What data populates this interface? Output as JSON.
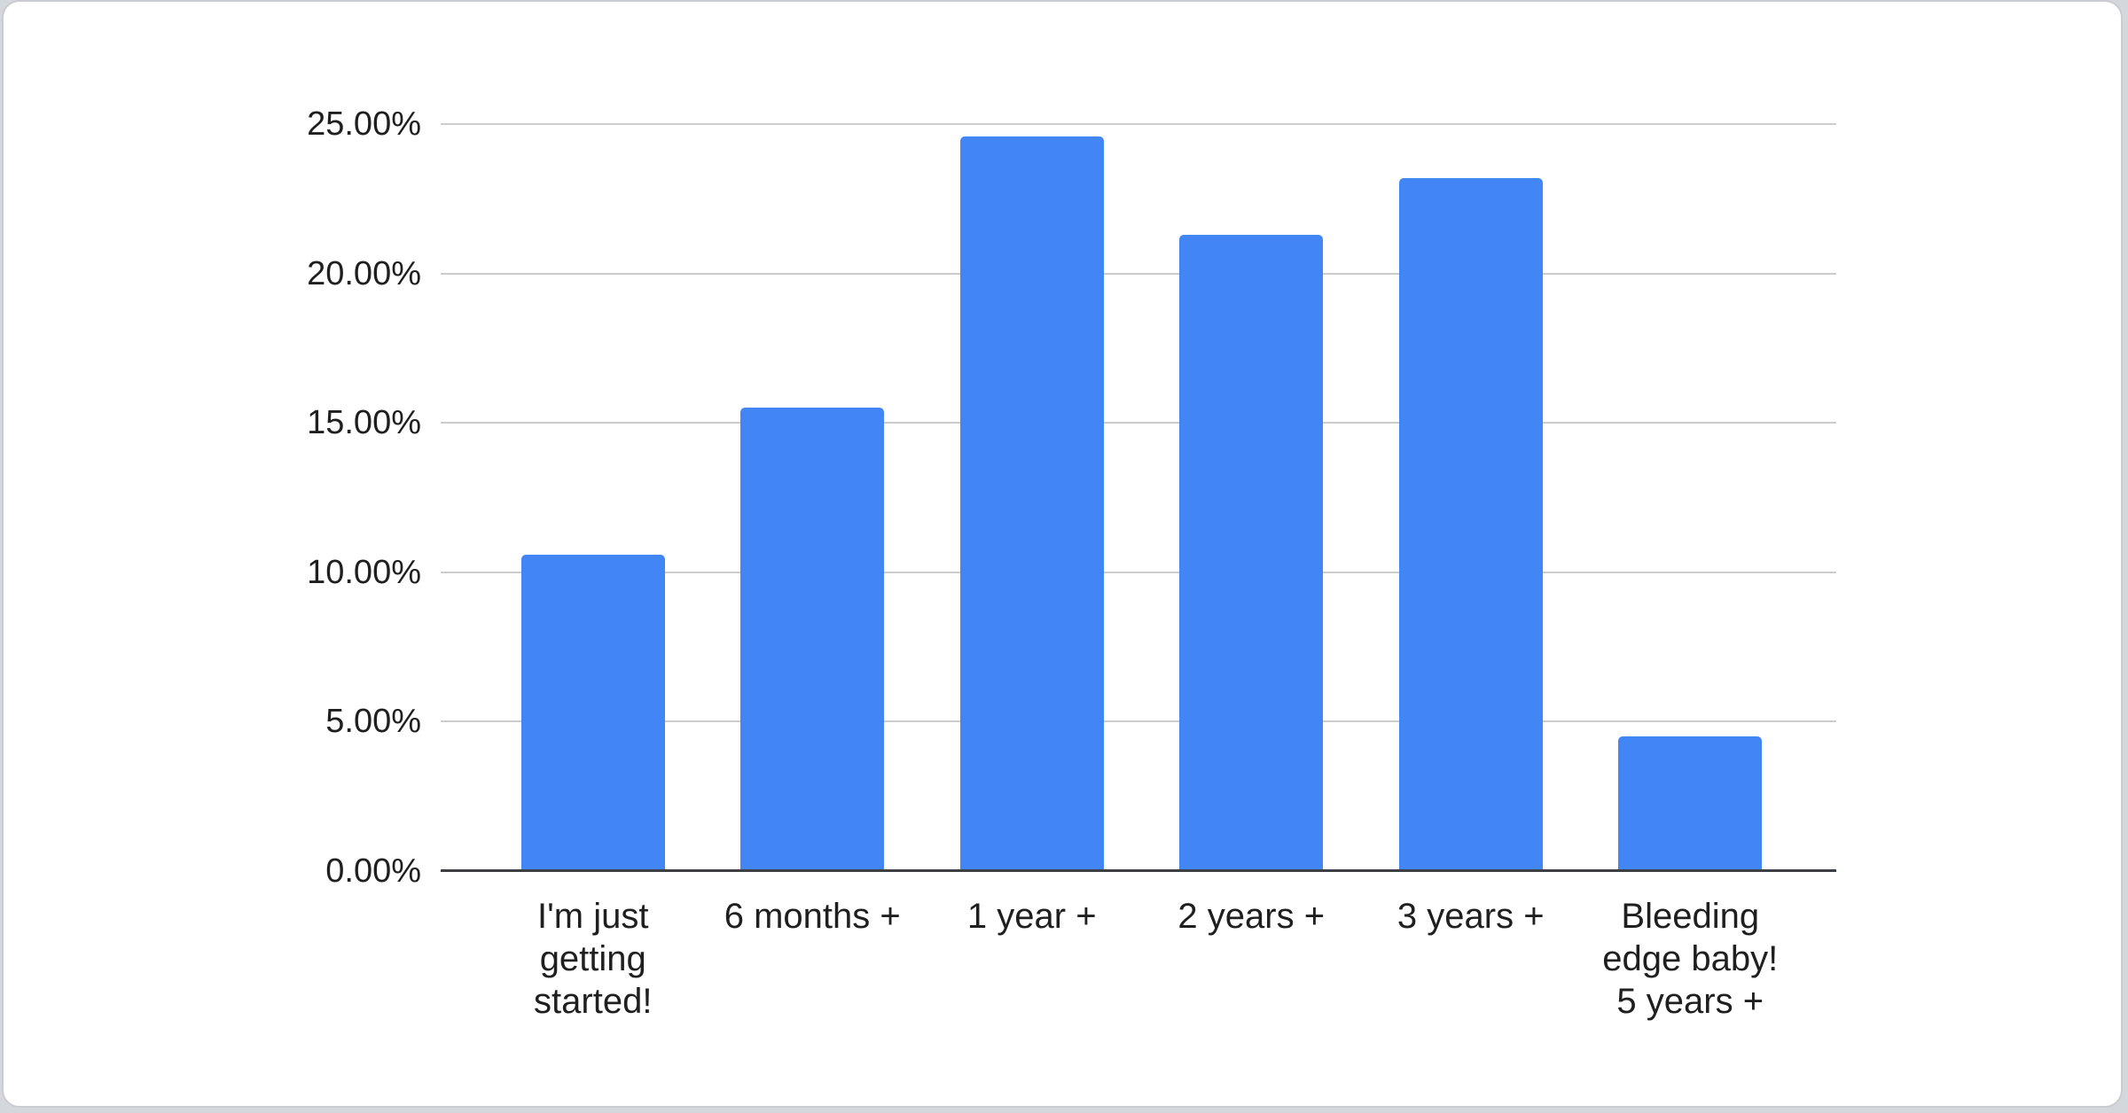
{
  "page": {
    "background_color": "#d4d7db",
    "card_background_color": "#ffffff"
  },
  "chart_data": {
    "type": "bar",
    "title": "",
    "xlabel": "",
    "ylabel": "",
    "legend": "none",
    "grid": true,
    "categories": [
      "I'm just getting started!",
      "6 months +",
      "1 year +",
      "2 years +",
      "3 years +",
      "Bleeding edge baby! 5 years +"
    ],
    "category_labels_display": [
      "I'm just\ngetting\nstarted!",
      "6 months +",
      "1 year +",
      "2 years +",
      "3 years +",
      "Bleeding\nedge baby!\n5 years +"
    ],
    "values": [
      10.6,
      15.5,
      24.6,
      21.3,
      23.2,
      4.5
    ],
    "value_unit": "percent",
    "ylim": [
      0,
      25
    ],
    "yticks": [
      {
        "value": 25,
        "label": "25.00%"
      },
      {
        "value": 20,
        "label": "20.00%"
      },
      {
        "value": 15,
        "label": "15.00%"
      },
      {
        "value": 10,
        "label": "10.00%"
      },
      {
        "value": 5,
        "label": "5.00%"
      },
      {
        "value": 0,
        "label": "0.00%"
      }
    ],
    "colors": {
      "bar": "#4285f4",
      "gridline": "#cccccc",
      "axis_line": "#3c4043",
      "label_text": "#1f1f1f"
    }
  }
}
